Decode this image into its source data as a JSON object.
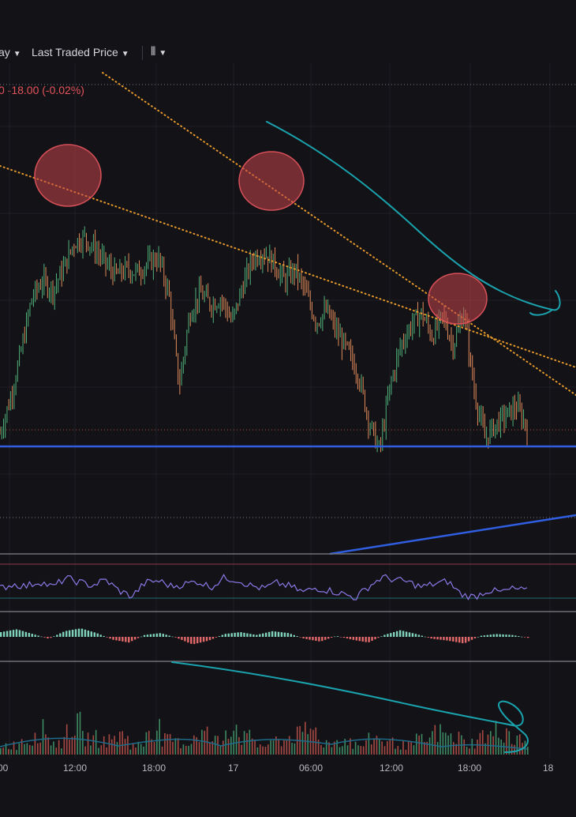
{
  "toolbar": {
    "interval_label": "ay",
    "price_source_label": "Last Traded Price",
    "chart_style_icon": "candlestick-icon",
    "caret_icon": "caret-down-icon"
  },
  "header": {
    "change_text": "0  -18.00 (-0.02%)"
  },
  "colors": {
    "background": "#131217",
    "up_candle": "#4fb17a",
    "down_candle": "#e08a5a",
    "trendline_orange": "#e79a2b",
    "support_blue": "#2f5fe0",
    "drawing_teal": "#1aa3ae",
    "rsi_purple": "#8c78e6",
    "highlight_circle": "#c2434b",
    "negative_text": "#e3545a"
  },
  "chart_data": {
    "type": "candlestick",
    "x_tick_labels": [
      "00",
      "12:00",
      "18:00",
      "17",
      "06:00",
      "12:00",
      "18:00",
      "18"
    ],
    "panes": [
      "price",
      "rsi",
      "macd-histogram",
      "volume"
    ],
    "price_close": [
      0.14,
      0.26,
      0.42,
      0.6,
      0.66,
      0.63,
      0.7,
      0.79,
      0.81,
      0.77,
      0.72,
      0.68,
      0.7,
      0.69,
      0.72,
      0.74,
      0.62,
      0.3,
      0.55,
      0.62,
      0.58,
      0.6,
      0.52,
      0.64,
      0.74,
      0.76,
      0.72,
      0.66,
      0.7,
      0.62,
      0.52,
      0.56,
      0.48,
      0.42,
      0.34,
      0.18,
      0.08,
      0.3,
      0.44,
      0.51,
      0.55,
      0.47,
      0.54,
      0.44,
      0.56,
      0.28,
      0.12,
      0.17,
      0.2,
      0.23,
      0.16
    ],
    "rsi_values": [
      0.45,
      0.55,
      0.5,
      0.62,
      0.48,
      0.7,
      0.6,
      0.52,
      0.66,
      0.4,
      0.25,
      0.58,
      0.64,
      0.5,
      0.55,
      0.62,
      0.48,
      0.7,
      0.66,
      0.52,
      0.44,
      0.58,
      0.5,
      0.36,
      0.46,
      0.4,
      0.32,
      0.22,
      0.5,
      0.72,
      0.66,
      0.6,
      0.48,
      0.56,
      0.62,
      0.3,
      0.24,
      0.4,
      0.36,
      0.44,
      0.38
    ],
    "macd_hist": [
      0.5,
      0.8,
      0.3,
      -0.2,
      0.6,
      0.9,
      0.4,
      -0.3,
      -0.6,
      0.2,
      0.4,
      -0.1,
      -0.8,
      -0.4,
      0.3,
      0.5,
      0.2,
      0.6,
      0.4,
      -0.2,
      -0.5,
      0.1,
      -0.3,
      -0.6,
      0.2,
      0.7,
      0.3,
      -0.2,
      -0.4,
      -0.7,
      0.1,
      0.3,
      0.2,
      -0.1
    ],
    "volume": [
      0.2,
      0.3,
      0.5,
      0.25,
      0.6,
      0.35,
      0.3,
      0.4,
      0.2,
      0.55,
      0.3,
      0.25,
      0.45,
      0.3,
      0.6,
      0.35,
      0.2,
      0.3,
      0.4,
      0.5,
      0.25,
      0.3,
      0.2,
      0.35,
      0.25,
      0.2,
      0.3,
      0.45,
      0.35,
      0.25,
      0.4,
      0.5,
      0.3,
      0.2
    ],
    "annotations": [
      "descending orange dotted trendlines",
      "blue horizontal support line",
      "three highlighted peak circles",
      "teal freehand arrow drawings"
    ]
  }
}
